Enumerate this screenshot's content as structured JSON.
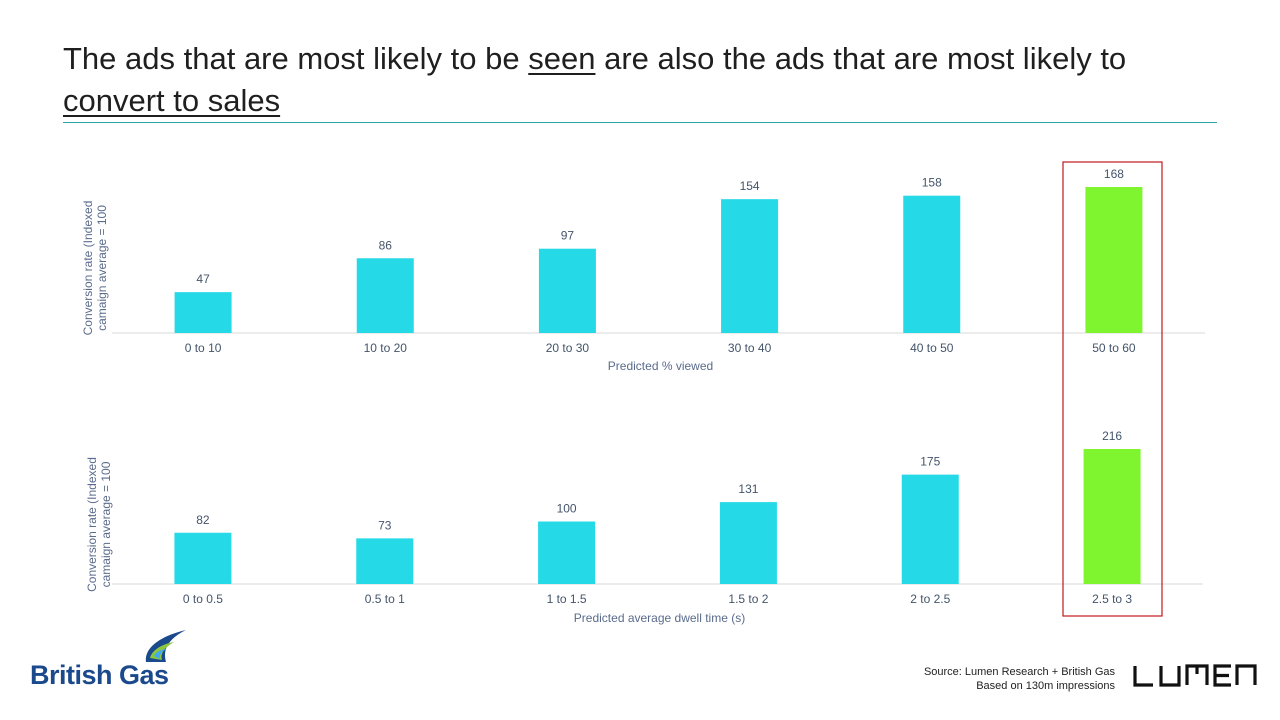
{
  "title": {
    "part1": "The ads that are most likely to be ",
    "emph1": "seen",
    "part2": " are also the ads that are most likely to ",
    "emph2": "convert to sales"
  },
  "colors": {
    "bar": "#25d9e6",
    "highlight": "#7ef52f",
    "highlight_box": "#c0181c",
    "rule": "#2aa7a0"
  },
  "chart_data": [
    {
      "type": "bar",
      "categories": [
        "0 to 10",
        "10 to 20",
        "20 to 30",
        "30 to 40",
        "40 to 50",
        "50 to 60"
      ],
      "values": [
        47,
        86,
        97,
        154,
        158,
        168
      ],
      "highlight_index": 5,
      "xlabel": "Predicted % viewed",
      "ylabel_line1": "Conversion  rate (Indexed",
      "ylabel_line2": "camaign  average  = 100",
      "ylim": [
        0,
        170
      ]
    },
    {
      "type": "bar",
      "categories": [
        "0 to 0.5",
        "0.5 to 1",
        "1 to 1.5",
        "1.5 to 2",
        "2 to 2.5",
        "2.5 to 3"
      ],
      "values": [
        82,
        73,
        100,
        131,
        175,
        216
      ],
      "highlight_index": 5,
      "xlabel": "Predicted average  dwell time (s)",
      "ylabel_line1": "Conversion  rate (Indexed",
      "ylabel_line2": "camaign  average  = 100",
      "ylim": [
        0,
        220
      ]
    }
  ],
  "logo": {
    "brand": "British Gas"
  },
  "source": {
    "line1": "Source: Lumen Research + British Gas",
    "line2": "Based on 130m impressions"
  },
  "lumen_logo": "LUMEN"
}
